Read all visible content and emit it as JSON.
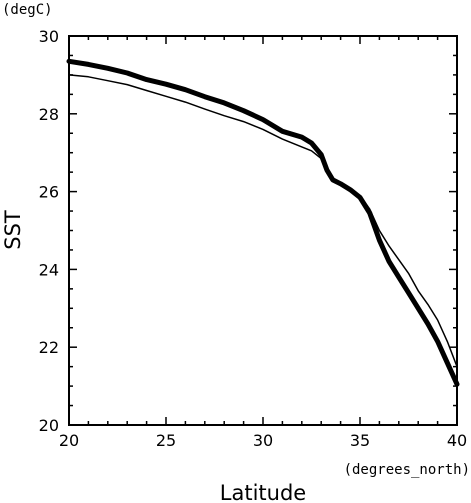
{
  "chart_data": {
    "type": "line",
    "title": "",
    "xlabel": "Latitude",
    "ylabel": "SST",
    "xunit": "(degrees_north)",
    "yunit": "(degC)",
    "xlim": [
      20,
      40
    ],
    "ylim": [
      20,
      30
    ],
    "xticks": [
      20,
      25,
      30,
      35,
      40
    ],
    "yticks": [
      20,
      22,
      24,
      26,
      28,
      30
    ],
    "grid": false,
    "series": [
      {
        "style": "thick",
        "color": "#000000",
        "x": [
          20,
          21,
          22,
          23,
          24,
          25,
          26,
          27,
          28,
          29,
          30,
          31,
          32,
          32.5,
          33,
          33.3,
          33.6,
          34,
          34.5,
          35,
          35.5,
          36,
          36.5,
          37,
          37.5,
          38,
          38.5,
          39,
          39.5,
          40
        ],
        "y": [
          29.35,
          29.27,
          29.17,
          29.05,
          28.88,
          28.76,
          28.62,
          28.44,
          28.28,
          28.08,
          27.85,
          27.55,
          27.4,
          27.25,
          26.95,
          26.55,
          26.3,
          26.2,
          26.05,
          25.85,
          25.45,
          24.75,
          24.2,
          23.8,
          23.4,
          23.0,
          22.6,
          22.15,
          21.6,
          21.05
        ]
      },
      {
        "style": "thin",
        "color": "#000000",
        "x": [
          20,
          21,
          22,
          23,
          24,
          25,
          26,
          27,
          28,
          29,
          30,
          31,
          32,
          32.5,
          33,
          33.3,
          33.6,
          34,
          34.5,
          35,
          35.5,
          36,
          36.5,
          37,
          37.5,
          38,
          38.5,
          39,
          39.5,
          40
        ],
        "y": [
          29.0,
          28.95,
          28.85,
          28.75,
          28.6,
          28.45,
          28.3,
          28.12,
          27.95,
          27.8,
          27.6,
          27.35,
          27.15,
          27.05,
          26.85,
          26.6,
          26.35,
          26.2,
          26.05,
          25.9,
          25.55,
          25.0,
          24.6,
          24.25,
          23.9,
          23.45,
          23.1,
          22.7,
          22.15,
          21.5
        ]
      }
    ]
  }
}
